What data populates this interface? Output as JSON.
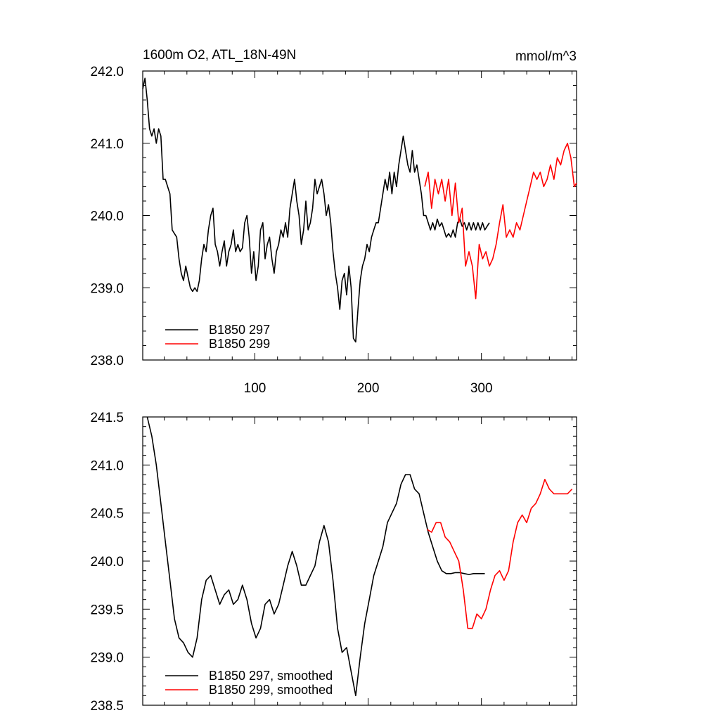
{
  "chart_data": [
    {
      "type": "line",
      "title": "1600m O2, ATL_18N-49N",
      "units": "mmol/m^3",
      "xlim": [
        1,
        384
      ],
      "ylim": [
        238.0,
        242.0
      ],
      "xticks": [
        100,
        200,
        300
      ],
      "xtick_labels": [
        "100",
        "200",
        "300"
      ],
      "yticks": [
        238.0,
        239.0,
        240.0,
        241.0,
        242.0
      ],
      "ytick_labels": [
        "238.0",
        "239.0",
        "240.0",
        "241.0",
        "242.0"
      ],
      "legend_position": "bottom-left",
      "series": [
        {
          "name": "B1850 297",
          "color": "#000000",
          "x": [
            1,
            3,
            5,
            7,
            9,
            11,
            13,
            15,
            17,
            19,
            21,
            23,
            25,
            27,
            29,
            31,
            33,
            35,
            37,
            39,
            41,
            43,
            45,
            47,
            49,
            51,
            53,
            55,
            57,
            59,
            61,
            63,
            65,
            67,
            69,
            71,
            73,
            75,
            77,
            79,
            81,
            83,
            85,
            87,
            89,
            91,
            93,
            95,
            97,
            99,
            101,
            103,
            105,
            107,
            109,
            111,
            113,
            115,
            117,
            119,
            121,
            123,
            125,
            127,
            129,
            131,
            133,
            135,
            137,
            139,
            141,
            143,
            145,
            147,
            149,
            151,
            153,
            155,
            157,
            159,
            161,
            163,
            165,
            167,
            169,
            171,
            173,
            175,
            177,
            179,
            181,
            183,
            185,
            187,
            189,
            191,
            193,
            195,
            197,
            199,
            201,
            203,
            205,
            207,
            209,
            211,
            213,
            215,
            217,
            219,
            221,
            223,
            225,
            227,
            229,
            231,
            233,
            235,
            237,
            239,
            241,
            243,
            245,
            247,
            249,
            251,
            253,
            255,
            257,
            259,
            261,
            263,
            265,
            267,
            269,
            271,
            273,
            275,
            277,
            279,
            281,
            283,
            285,
            287,
            289,
            291,
            293,
            295,
            297,
            299,
            301,
            303,
            305,
            307
          ],
          "y": [
            241.75,
            241.9,
            241.6,
            241.2,
            241.1,
            241.2,
            241.0,
            241.2,
            241.1,
            240.5,
            240.5,
            240.4,
            240.3,
            239.8,
            239.75,
            239.7,
            239.4,
            239.2,
            239.1,
            239.3,
            239.15,
            239.0,
            238.95,
            239.0,
            238.95,
            239.1,
            239.4,
            239.6,
            239.5,
            239.8,
            240.0,
            240.1,
            239.6,
            239.5,
            239.3,
            239.5,
            239.65,
            239.3,
            239.5,
            239.6,
            239.8,
            239.5,
            239.6,
            239.5,
            239.55,
            239.9,
            240.0,
            239.7,
            239.2,
            239.5,
            239.1,
            239.3,
            239.8,
            239.9,
            239.4,
            239.6,
            239.7,
            239.4,
            239.2,
            239.5,
            239.6,
            239.8,
            239.7,
            239.9,
            239.7,
            240.1,
            240.3,
            240.5,
            240.2,
            240.0,
            239.6,
            239.8,
            240.2,
            239.8,
            239.9,
            240.1,
            240.5,
            240.3,
            240.4,
            240.5,
            240.3,
            240.0,
            240.15,
            239.9,
            239.5,
            239.2,
            239.0,
            238.7,
            239.1,
            239.2,
            238.9,
            239.3,
            239.0,
            238.3,
            238.25,
            238.7,
            239.1,
            239.3,
            239.4,
            239.6,
            239.5,
            239.7,
            239.8,
            239.9,
            239.9,
            240.1,
            240.3,
            240.5,
            240.35,
            240.6,
            240.3,
            240.6,
            240.4,
            240.7,
            240.9,
            241.1,
            240.9,
            240.7,
            240.6,
            240.9,
            240.6,
            240.7,
            240.5,
            240.3,
            240.0,
            240.0,
            239.9,
            239.8,
            239.9,
            239.8,
            239.95,
            239.85,
            239.9,
            239.8,
            239.7,
            239.75,
            239.7,
            239.8,
            239.7,
            239.9,
            239.95,
            239.85,
            239.9,
            239.8,
            239.9,
            239.8,
            239.9,
            239.8,
            239.9,
            239.8,
            239.9,
            239.8,
            239.85,
            239.9
          ]
        },
        {
          "name": "B1850 299",
          "color": "#ff0000",
          "x": [
            250,
            253,
            256,
            259,
            262,
            265,
            268,
            271,
            274,
            277,
            280,
            283,
            286,
            289,
            292,
            295,
            298,
            301,
            304,
            307,
            310,
            313,
            316,
            319,
            322,
            325,
            328,
            331,
            334,
            337,
            340,
            343,
            346,
            349,
            352,
            355,
            358,
            361,
            364,
            367,
            370,
            373,
            376,
            379,
            382,
            384
          ],
          "y": [
            240.4,
            240.6,
            240.1,
            240.5,
            240.3,
            240.5,
            240.2,
            240.5,
            240.0,
            240.45,
            239.9,
            240.1,
            239.3,
            239.5,
            239.3,
            238.85,
            239.6,
            239.4,
            239.5,
            239.3,
            239.4,
            239.6,
            239.9,
            240.15,
            239.7,
            239.8,
            239.7,
            239.9,
            239.8,
            240.0,
            240.2,
            240.4,
            240.6,
            240.5,
            240.6,
            240.4,
            240.5,
            240.7,
            240.5,
            240.8,
            240.7,
            240.9,
            241.0,
            240.8,
            240.4,
            240.45
          ]
        }
      ]
    },
    {
      "type": "line",
      "xlim": [
        1,
        384
      ],
      "ylim": [
        238.5,
        241.5
      ],
      "xticks": [
        100,
        200,
        300
      ],
      "yticks": [
        238.5,
        239.0,
        239.5,
        240.0,
        240.5,
        241.0,
        241.5
      ],
      "ytick_labels": [
        "238.5",
        "239.0",
        "239.5",
        "240.0",
        "240.5",
        "241.0",
        "241.5"
      ],
      "legend_position": "bottom-left",
      "series": [
        {
          "name": "B1850 297, smoothed",
          "color": "#000000",
          "x": [
            5,
            9,
            13,
            17,
            21,
            25,
            29,
            33,
            37,
            41,
            45,
            49,
            53,
            57,
            61,
            65,
            69,
            73,
            77,
            81,
            85,
            89,
            93,
            97,
            101,
            105,
            109,
            113,
            117,
            121,
            125,
            129,
            133,
            137,
            141,
            145,
            149,
            153,
            157,
            161,
            165,
            169,
            173,
            177,
            181,
            185,
            189,
            193,
            197,
            201,
            205,
            209,
            213,
            217,
            221,
            225,
            229,
            233,
            237,
            241,
            245,
            249,
            253,
            257,
            261,
            265,
            269,
            273,
            277,
            281,
            285,
            289,
            293,
            297,
            301,
            303
          ],
          "y": [
            241.5,
            241.3,
            241.0,
            240.6,
            240.2,
            239.8,
            239.4,
            239.2,
            239.15,
            239.05,
            239.0,
            239.2,
            239.6,
            239.8,
            239.85,
            239.7,
            239.55,
            239.65,
            239.7,
            239.55,
            239.6,
            239.75,
            239.6,
            239.35,
            239.2,
            239.3,
            239.55,
            239.6,
            239.45,
            239.55,
            239.75,
            239.95,
            240.1,
            239.95,
            239.75,
            239.75,
            239.85,
            239.95,
            240.2,
            240.37,
            240.2,
            239.8,
            239.3,
            239.05,
            239.1,
            238.85,
            238.6,
            239.0,
            239.35,
            239.6,
            239.85,
            240.0,
            240.15,
            240.4,
            240.5,
            240.6,
            240.8,
            240.9,
            240.9,
            240.75,
            240.7,
            240.5,
            240.3,
            240.15,
            240.0,
            239.9,
            239.87,
            239.87,
            239.88,
            239.88,
            239.87,
            239.86,
            239.87,
            239.87,
            239.87,
            239.87
          ]
        },
        {
          "name": "B1850 299, smoothed",
          "color": "#ff0000",
          "x": [
            252,
            256,
            260,
            264,
            268,
            272,
            276,
            280,
            284,
            288,
            292,
            296,
            300,
            304,
            308,
            312,
            316,
            320,
            324,
            328,
            332,
            336,
            340,
            344,
            348,
            352,
            356,
            360,
            364,
            368,
            372,
            376,
            380
          ],
          "y": [
            240.33,
            240.3,
            240.4,
            240.4,
            240.25,
            240.2,
            240.1,
            240.0,
            239.7,
            239.3,
            239.3,
            239.45,
            239.4,
            239.5,
            239.7,
            239.85,
            239.9,
            239.8,
            239.9,
            240.2,
            240.4,
            240.48,
            240.4,
            240.55,
            240.6,
            240.7,
            240.85,
            240.75,
            240.7,
            240.7,
            240.7,
            240.7,
            240.75
          ]
        }
      ]
    }
  ]
}
